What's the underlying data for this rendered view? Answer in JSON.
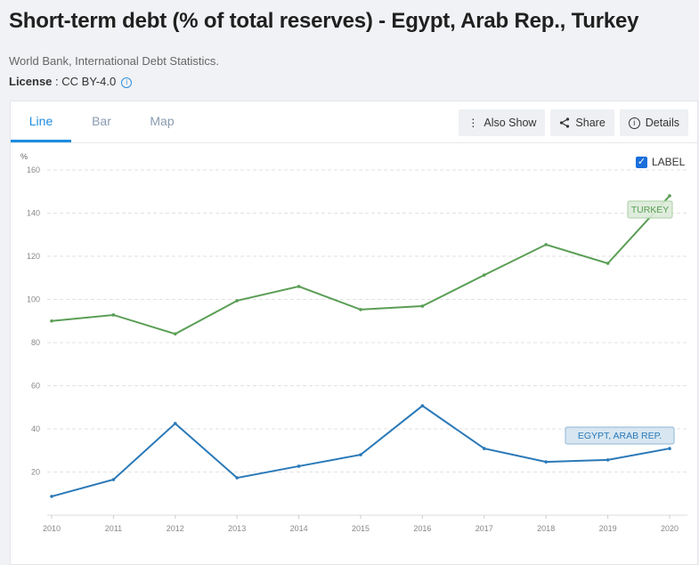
{
  "header": {
    "title": "Short-term debt (% of total reserves) - Egypt, Arab Rep., Turkey",
    "source": "World Bank, International Debt Statistics.",
    "license_label": "License",
    "license_value": " : CC BY-4.0",
    "info_icon": "i"
  },
  "tabs": [
    {
      "label": "Line"
    },
    {
      "label": "Bar"
    },
    {
      "label": "Map"
    }
  ],
  "buttons": {
    "also_show": "Also Show",
    "share": "Share",
    "details": "Details"
  },
  "label_toggle": {
    "text": "LABEL",
    "checked": true
  },
  "chart_data": {
    "type": "line",
    "ylabel": "%",
    "ylim": [
      0,
      160
    ],
    "yticks": [
      20,
      40,
      60,
      80,
      100,
      120,
      140,
      160
    ],
    "x": [
      "2010",
      "2011",
      "2012",
      "2013",
      "2014",
      "2015",
      "2016",
      "2017",
      "2018",
      "2019",
      "2020"
    ],
    "grid": true,
    "series": [
      {
        "name": "TURKEY",
        "color": "#5a9e55",
        "label_bg": "#dcebd9",
        "label_border": "#a8cfa3",
        "values": [
          90,
          92.8,
          84,
          99.4,
          106,
          95.3,
          96.9,
          111.3,
          125.4,
          116.7,
          148
        ]
      },
      {
        "name": "EGYPT, ARAB REP.",
        "color": "#2a79b8",
        "label_bg": "#d3e3f0",
        "label_border": "#8fb7d8",
        "values": [
          8.7,
          16.5,
          42.5,
          17.3,
          22.7,
          28,
          50.7,
          30.9,
          24.7,
          25.6,
          30.9
        ]
      }
    ]
  }
}
